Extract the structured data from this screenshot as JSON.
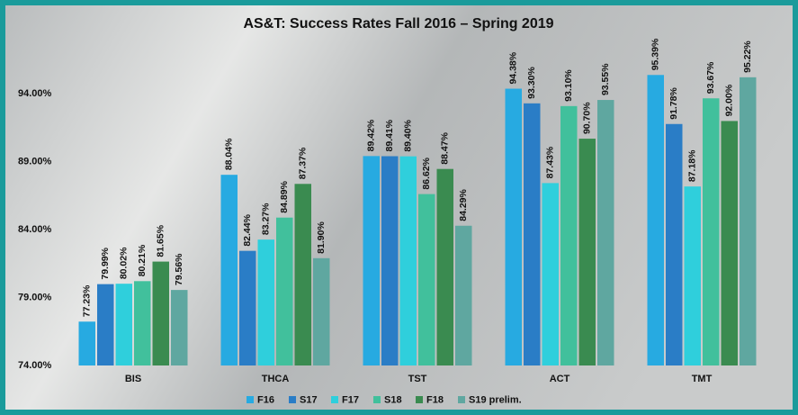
{
  "chart_data": {
    "type": "bar",
    "title": "AS&T: Success Rates Fall 2016 – Spring 2019",
    "categories": [
      "BIS",
      "THCA",
      "TST",
      "ACT",
      "TMT"
    ],
    "series": [
      {
        "name": "F16",
        "color": "#27aae1",
        "values": [
          77.23,
          88.04,
          89.42,
          94.38,
          95.39
        ],
        "value_labels": [
          "77.23%",
          "88.04%",
          "89.42%",
          "94.38%",
          "95.39%"
        ]
      },
      {
        "name": "S17",
        "color": "#2a7dc6",
        "values": [
          79.99,
          82.44,
          89.41,
          93.3,
          91.78
        ],
        "value_labels": [
          "79.99%",
          "82.44%",
          "89.41%",
          "93.30%",
          "91.78%"
        ]
      },
      {
        "name": "F17",
        "color": "#2fcfdc",
        "values": [
          80.02,
          83.27,
          89.4,
          87.43,
          87.18
        ],
        "value_labels": [
          "80.02%",
          "83.27%",
          "89.40%",
          "87.43%",
          "87.18%"
        ]
      },
      {
        "name": "S18",
        "color": "#41c09c",
        "values": [
          80.21,
          84.89,
          86.62,
          93.1,
          93.67
        ],
        "value_labels": [
          "80.21%",
          "84.89%",
          "86.62%",
          "93.10%",
          "93.67%"
        ]
      },
      {
        "name": "F18",
        "color": "#3a8b50",
        "values": [
          81.65,
          87.37,
          88.47,
          90.7,
          92.0
        ],
        "value_labels": [
          "81.65%",
          "87.37%",
          "88.47%",
          "90.70%",
          "92.00%"
        ]
      },
      {
        "name": "S19 prelim.",
        "color": "#5fa7a0",
        "values": [
          79.56,
          81.9,
          84.29,
          93.55,
          95.22
        ],
        "value_labels": [
          "79.56%",
          "81.90%",
          "84.29%",
          "93.55%",
          "95.22%"
        ]
      }
    ],
    "ylim": [
      74,
      97
    ],
    "yticks": [
      {
        "value": 74,
        "label": "74.00%"
      },
      {
        "value": 79,
        "label": "79.00%"
      },
      {
        "value": 84,
        "label": "84.00%"
      },
      {
        "value": 89,
        "label": "89.00%"
      },
      {
        "value": 94,
        "label": "94.00%"
      }
    ],
    "grid": false,
    "legend": "bottom"
  }
}
